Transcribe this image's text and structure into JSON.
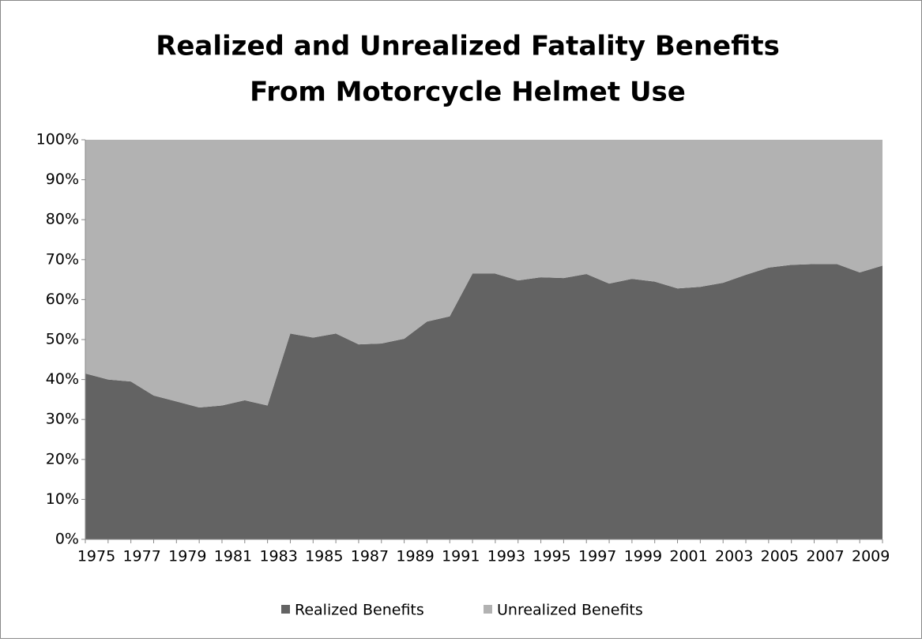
{
  "chart_data": {
    "type": "stacked_area",
    "title": [
      "Realized and Unrealized Fatality Benefits",
      "From Motorcycle Helmet Use"
    ],
    "categories": [
      "1975",
      null,
      "1977",
      null,
      "1979",
      null,
      "1981",
      null,
      "1983",
      null,
      "1985",
      null,
      "1987",
      null,
      "1989",
      null,
      "1991",
      null,
      "1993",
      null,
      "1995",
      null,
      "1997",
      null,
      "1999",
      null,
      "2001",
      null,
      "2003",
      null,
      "2005",
      null,
      "2007",
      null,
      "2009",
      null
    ],
    "series": [
      {
        "name": "Realized Benefits",
        "color": "#636363",
        "values": [
          41.5,
          40,
          39.5,
          36,
          34.5,
          33,
          33.5,
          34.8,
          33.5,
          51.5,
          50.5,
          51.5,
          48.8,
          49,
          50.2,
          54.5,
          55.8,
          66.5,
          66.5,
          64.8,
          65.6,
          65.4,
          66.4,
          64,
          65.2,
          64.5,
          62.8,
          63.2,
          64.2,
          66.2,
          68,
          68.7,
          68.9,
          68.9,
          66.8,
          68.5
        ]
      },
      {
        "name": "Unrealized Benefits",
        "color": "#b2b2b2",
        "values": [
          58.5,
          60,
          60.5,
          64,
          65.5,
          67,
          66.5,
          65.2,
          66.5,
          48.5,
          49.5,
          48.5,
          51.2,
          51,
          49.8,
          45.5,
          44.2,
          33.5,
          33.5,
          35.2,
          34.4,
          34.6,
          33.6,
          36,
          34.8,
          35.5,
          37.2,
          36.8,
          35.8,
          33.8,
          32,
          31.3,
          31.1,
          31.1,
          33.2,
          31.5
        ]
      }
    ],
    "ylim": [
      0,
      100
    ],
    "yticks": [
      {
        "value": 0,
        "label": "0%"
      },
      {
        "value": 10,
        "label": "10%"
      },
      {
        "value": 20,
        "label": "20%"
      },
      {
        "value": 30,
        "label": "30%"
      },
      {
        "value": 40,
        "label": "40%"
      },
      {
        "value": 50,
        "label": "50%"
      },
      {
        "value": 60,
        "label": "60%"
      },
      {
        "value": 70,
        "label": "70%"
      },
      {
        "value": 80,
        "label": "80%"
      },
      {
        "value": 90,
        "label": "90%"
      },
      {
        "value": 100,
        "label": "100%"
      }
    ],
    "legend": "bottom"
  }
}
